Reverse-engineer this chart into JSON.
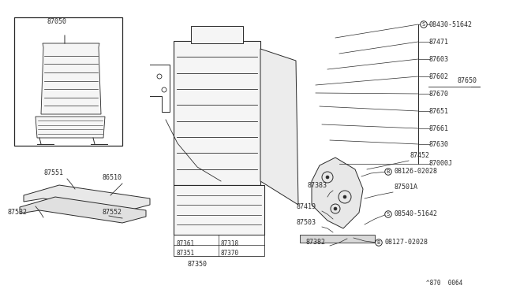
{
  "bg_color": "#ffffff",
  "line_color": "#2a2a2a",
  "title": "^870  0064",
  "fig_w": 6.4,
  "fig_h": 3.72,
  "dpi": 100,
  "xlim": [
    0,
    640
  ],
  "ylim": [
    0,
    372
  ]
}
